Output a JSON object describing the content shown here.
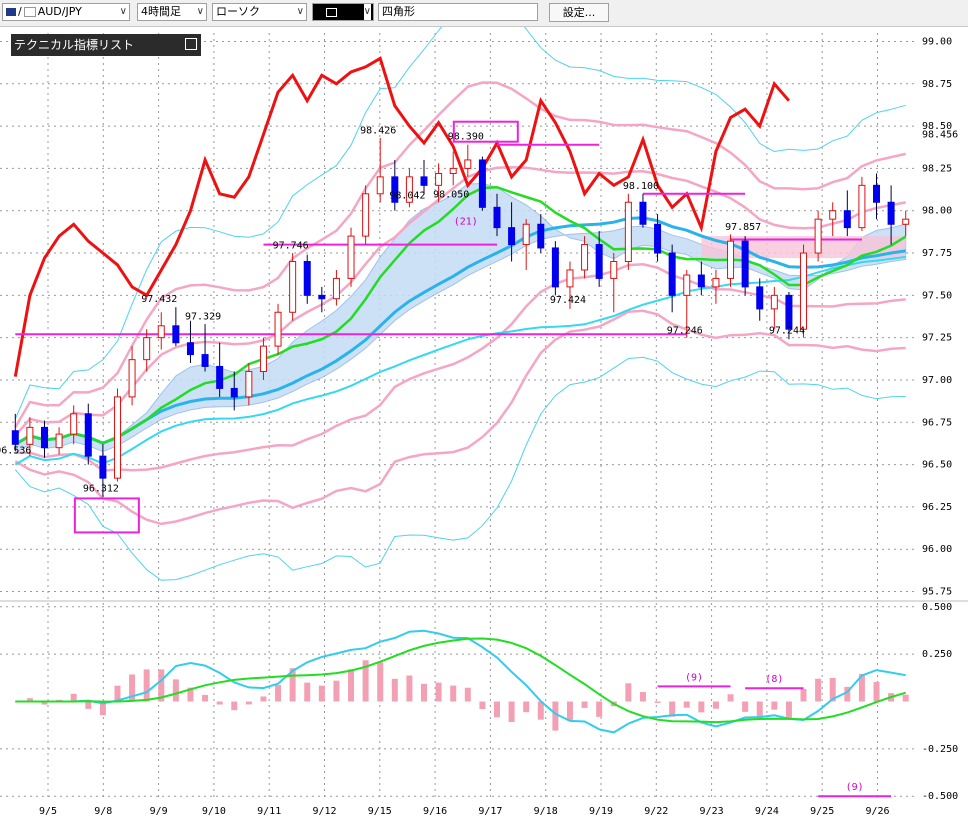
{
  "toolbar": {
    "symbol": "AUD/JPY",
    "timeframe": "4時間足",
    "chart_type": "ローソク",
    "draw_tool_icon": "rectangle-icon",
    "shape": "四角形",
    "settings_label": "設定..."
  },
  "indicator_list": {
    "title": "テクニカル指標リスト"
  },
  "chart_data": [
    {
      "type": "candlestick",
      "title": "",
      "y_ticks": [
        "99.00",
        "98.75",
        "98.50",
        "98.25",
        "98.00",
        "97.75",
        "97.50",
        "97.25",
        "97.00",
        "96.75",
        "96.50",
        "96.25",
        "96.00",
        "95.75"
      ],
      "ylim": [
        95.7,
        99.05
      ],
      "current_price": "98.456",
      "x_ticks": [
        "9/5",
        "9/8",
        "9/9",
        "9/10",
        "9/11",
        "9/12",
        "9/15",
        "9/16",
        "9/17",
        "9/18",
        "9/19",
        "9/22",
        "9/23",
        "9/24",
        "9/25",
        "9/26"
      ],
      "candles": [
        [
          96.7,
          96.8,
          96.58,
          96.62
        ],
        [
          96.62,
          96.78,
          96.55,
          96.72
        ],
        [
          96.72,
          96.76,
          96.54,
          96.6
        ],
        [
          96.6,
          96.72,
          96.56,
          96.68
        ],
        [
          96.68,
          96.85,
          96.62,
          96.8
        ],
        [
          96.8,
          96.86,
          96.5,
          96.55
        ],
        [
          96.55,
          96.62,
          96.31,
          96.42
        ],
        [
          96.42,
          96.95,
          96.4,
          96.9
        ],
        [
          96.9,
          97.2,
          96.85,
          97.12
        ],
        [
          97.12,
          97.3,
          97.05,
          97.25
        ],
        [
          97.25,
          97.4,
          97.18,
          97.32
        ],
        [
          97.32,
          97.43,
          97.2,
          97.22
        ],
        [
          97.22,
          97.35,
          97.1,
          97.15
        ],
        [
          97.15,
          97.33,
          97.05,
          97.08
        ],
        [
          97.08,
          97.22,
          96.9,
          96.95
        ],
        [
          96.95,
          97.05,
          96.82,
          96.9
        ],
        [
          96.9,
          97.1,
          96.85,
          97.05
        ],
        [
          97.05,
          97.25,
          97.0,
          97.2
        ],
        [
          97.2,
          97.45,
          97.15,
          97.4
        ],
        [
          97.4,
          97.75,
          97.35,
          97.7
        ],
        [
          97.7,
          97.74,
          97.45,
          97.5
        ],
        [
          97.5,
          97.55,
          97.4,
          97.48
        ],
        [
          97.48,
          97.65,
          97.44,
          97.6
        ],
        [
          97.6,
          97.9,
          97.55,
          97.85
        ],
        [
          97.85,
          98.15,
          97.8,
          98.1
        ],
        [
          98.1,
          98.43,
          98.05,
          98.2
        ],
        [
          98.2,
          98.3,
          98.0,
          98.05
        ],
        [
          98.05,
          98.25,
          98.02,
          98.2
        ],
        [
          98.2,
          98.3,
          98.1,
          98.15
        ],
        [
          98.15,
          98.28,
          98.05,
          98.22
        ],
        [
          98.22,
          98.35,
          98.15,
          98.25
        ],
        [
          98.25,
          98.39,
          98.2,
          98.3
        ],
        [
          98.3,
          98.32,
          98.0,
          98.02
        ],
        [
          98.02,
          98.1,
          97.85,
          97.9
        ],
        [
          97.9,
          98.05,
          97.7,
          97.8
        ],
        [
          97.8,
          97.95,
          97.65,
          97.92
        ],
        [
          97.92,
          97.98,
          97.75,
          97.78
        ],
        [
          97.78,
          97.82,
          97.5,
          97.55
        ],
        [
          97.55,
          97.7,
          97.42,
          97.65
        ],
        [
          97.65,
          97.85,
          97.6,
          97.8
        ],
        [
          97.8,
          97.88,
          97.55,
          97.6
        ],
        [
          97.6,
          97.75,
          97.4,
          97.7
        ],
        [
          97.7,
          98.1,
          97.65,
          98.05
        ],
        [
          98.05,
          98.1,
          97.9,
          97.92
        ],
        [
          97.92,
          97.98,
          97.7,
          97.75
        ],
        [
          97.75,
          97.8,
          97.4,
          97.5
        ],
        [
          97.5,
          97.65,
          97.25,
          97.62
        ],
        [
          97.62,
          97.7,
          97.5,
          97.55
        ],
        [
          97.55,
          97.65,
          97.45,
          97.6
        ],
        [
          97.6,
          97.86,
          97.55,
          97.82
        ],
        [
          97.82,
          97.85,
          97.5,
          97.55
        ],
        [
          97.55,
          97.6,
          97.35,
          97.42
        ],
        [
          97.42,
          97.55,
          97.3,
          97.5
        ],
        [
          97.5,
          97.52,
          97.24,
          97.3
        ],
        [
          97.3,
          97.8,
          97.25,
          97.75
        ],
        [
          97.75,
          98.0,
          97.7,
          97.95
        ],
        [
          97.95,
          98.05,
          97.85,
          98.0
        ],
        [
          98.0,
          98.12,
          97.85,
          97.9
        ],
        [
          97.9,
          98.2,
          97.88,
          98.15
        ],
        [
          98.15,
          98.22,
          97.95,
          98.05
        ],
        [
          98.05,
          98.15,
          97.8,
          97.92
        ],
        [
          97.92,
          98.0,
          97.85,
          97.95
        ]
      ],
      "price_labels": [
        {
          "t": "96.536",
          "x": 0,
          "y": 96.536
        },
        {
          "t": "96.312",
          "x": 6,
          "y": 96.312
        },
        {
          "t": "97.432",
          "x": 10,
          "y": 97.432
        },
        {
          "t": "97.329",
          "x": 13,
          "y": 97.329
        },
        {
          "t": "97.746",
          "x": 19,
          "y": 97.746
        },
        {
          "t": "98.426",
          "x": 25,
          "y": 98.426
        },
        {
          "t": "98.042",
          "x": 27,
          "y": 98.042
        },
        {
          "t": "98.050",
          "x": 30,
          "y": 98.05
        },
        {
          "t": "98.390",
          "x": 31,
          "y": 98.39
        },
        {
          "t": "97.424",
          "x": 38,
          "y": 97.424
        },
        {
          "t": "98.100",
          "x": 43,
          "y": 98.1
        },
        {
          "t": "97.246",
          "x": 46,
          "y": 97.246
        },
        {
          "t": "97.857",
          "x": 50,
          "y": 97.857
        },
        {
          "t": "97.244",
          "x": 53,
          "y": 97.244
        }
      ],
      "annotation": "(21)"
    },
    {
      "type": "line",
      "title": "",
      "y_ticks": [
        "0.500",
        "0.250",
        "-0.250",
        "-0.500"
      ],
      "ylim": [
        -0.52,
        0.52
      ],
      "annotations": [
        "(9)",
        "(8)",
        "(9)"
      ]
    }
  ]
}
